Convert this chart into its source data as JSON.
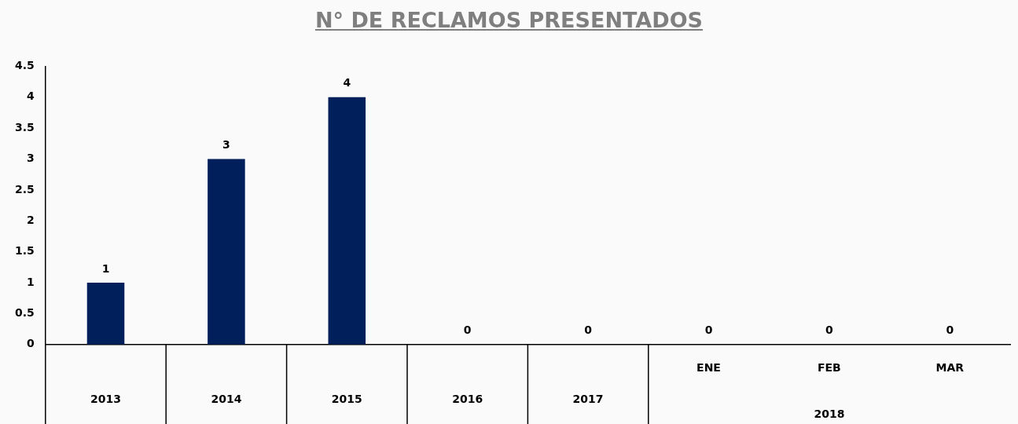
{
  "chart_data": {
    "type": "bar",
    "title": "N° DE RECLAMOS PRESENTADOS",
    "categories": [
      "2013",
      "2014",
      "2015",
      "2016",
      "2017",
      "ENE",
      "FEB",
      "MAR"
    ],
    "values": [
      1,
      3,
      4,
      0,
      0,
      0,
      0,
      0
    ],
    "color": "#001f5b",
    "ylim": [
      0,
      4.5
    ],
    "yticks": [
      0,
      0.5,
      1,
      1.5,
      2,
      2.5,
      3,
      3.5,
      4,
      4.5
    ],
    "grid": false,
    "legend": false,
    "data_labels": true,
    "annotations": [
      "2018"
    ]
  }
}
